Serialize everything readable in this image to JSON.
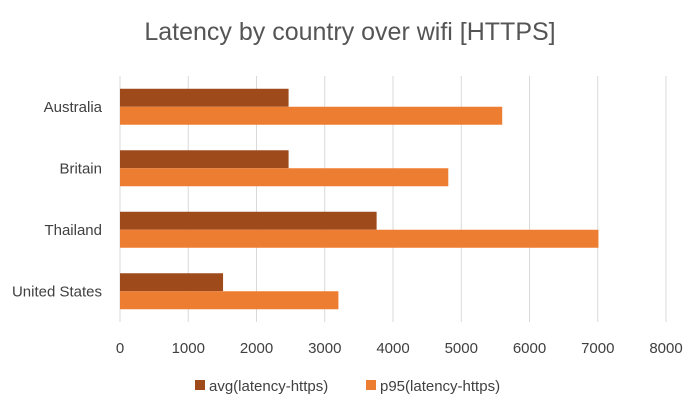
{
  "chart_data": {
    "type": "bar",
    "orientation": "horizontal",
    "title": "Latency by country over wifi [HTTPS]",
    "categories": [
      "Australia",
      "Britain",
      "Thailand",
      "United States"
    ],
    "series": [
      {
        "name": "avg(latency-https)",
        "color": "#9e4a1a",
        "values": [
          2470,
          2470,
          3760,
          1510
        ]
      },
      {
        "name": "p95(latency-https)",
        "color": "#ed7d31",
        "values": [
          5600,
          4810,
          7010,
          3200
        ]
      }
    ],
    "xlim": [
      0,
      8000
    ],
    "x_ticks": [
      0,
      1000,
      2000,
      3000,
      4000,
      5000,
      6000,
      7000,
      8000
    ],
    "grid": "vertical",
    "grid_color": "#d9d9d9",
    "legend": "bottom"
  }
}
